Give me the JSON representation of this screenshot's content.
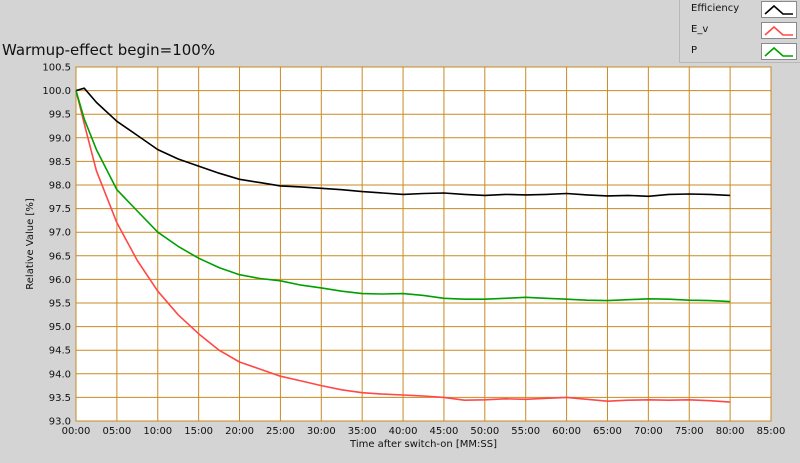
{
  "chart_data": {
    "type": "line",
    "title": "Warmup-effect begin=100%",
    "xlabel": "Time after switch-on [MM:SS]",
    "ylabel": "Relative Value [%]",
    "xlim": [
      0,
      85
    ],
    "ylim": [
      93.0,
      100.5
    ],
    "x_ticks": [
      "00:00",
      "05:00",
      "10:00",
      "15:00",
      "20:00",
      "25:00",
      "30:00",
      "35:00",
      "40:00",
      "45:00",
      "50:00",
      "55:00",
      "60:00",
      "65:00",
      "70:00",
      "75:00",
      "80:00",
      "85:00"
    ],
    "y_ticks": [
      "100.5",
      "100.0",
      "99.5",
      "99.0",
      "98.5",
      "98.0",
      "97.5",
      "97.0",
      "96.5",
      "96.0",
      "95.5",
      "95.0",
      "94.5",
      "94.0",
      "93.5",
      "93.0"
    ],
    "grid": true,
    "legend_position": "top-right",
    "x": [
      0,
      1,
      2.5,
      5,
      7.5,
      10,
      12.5,
      15,
      17.5,
      20,
      22.5,
      25,
      27.5,
      30,
      32.5,
      35,
      37.5,
      40,
      42.5,
      45,
      47.5,
      50,
      52.5,
      55,
      57.5,
      60,
      62.5,
      65,
      67.5,
      70,
      72.5,
      75,
      77.5,
      80
    ],
    "series": [
      {
        "name": "Efficiency",
        "color": "#000000",
        "values": [
          100.0,
          100.05,
          99.75,
          99.35,
          99.05,
          98.75,
          98.55,
          98.4,
          98.25,
          98.12,
          98.05,
          97.98,
          97.96,
          97.93,
          97.9,
          97.86,
          97.83,
          97.8,
          97.82,
          97.83,
          97.8,
          97.78,
          97.8,
          97.79,
          97.8,
          97.82,
          97.79,
          97.77,
          97.78,
          97.76,
          97.8,
          97.81,
          97.8,
          97.78
        ]
      },
      {
        "name": "E_v",
        "color": "#ff4848",
        "values": [
          100.0,
          99.3,
          98.3,
          97.2,
          96.4,
          95.75,
          95.25,
          94.85,
          94.5,
          94.25,
          94.1,
          93.95,
          93.85,
          93.75,
          93.66,
          93.6,
          93.57,
          93.55,
          93.53,
          93.5,
          93.44,
          93.45,
          93.47,
          93.46,
          93.48,
          93.5,
          93.46,
          93.42,
          93.44,
          93.45,
          93.44,
          93.45,
          93.43,
          93.4
        ]
      },
      {
        "name": "P",
        "color": "#00a000",
        "values": [
          100.0,
          99.4,
          98.75,
          97.9,
          97.45,
          97.0,
          96.7,
          96.45,
          96.25,
          96.1,
          96.02,
          95.97,
          95.88,
          95.82,
          95.75,
          95.7,
          95.69,
          95.7,
          95.66,
          95.6,
          95.58,
          95.58,
          95.6,
          95.62,
          95.6,
          95.58,
          95.56,
          95.55,
          95.57,
          95.59,
          95.58,
          95.56,
          95.55,
          95.53
        ]
      }
    ]
  }
}
